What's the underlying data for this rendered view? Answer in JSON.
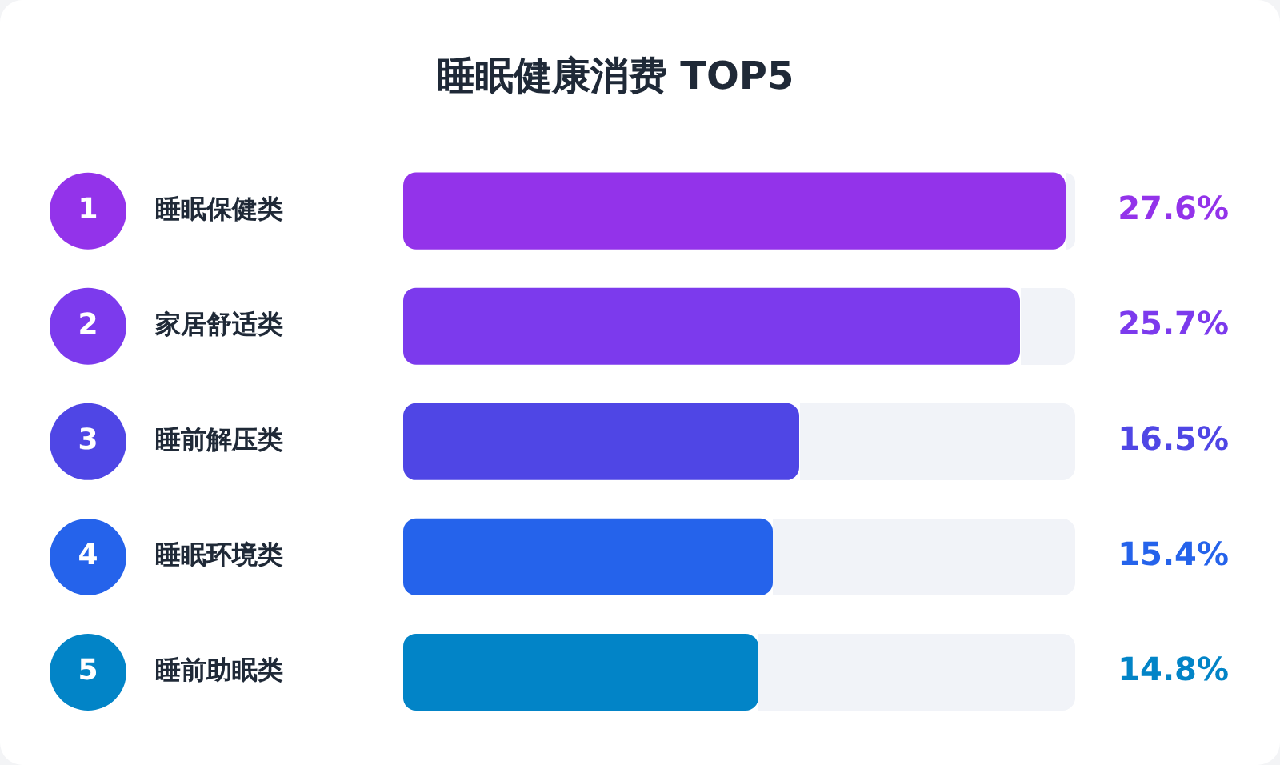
{
  "chart_data": {
    "type": "bar",
    "orientation": "horizontal",
    "title": "睡眠健康消费 TOP5",
    "categories": [
      "睡眠保健类",
      "家居舒适类",
      "睡前解压类",
      "睡眠环境类",
      "睡前助眠类"
    ],
    "values": [
      27.6,
      25.7,
      16.5,
      15.4,
      14.8
    ],
    "colors": [
      "#9333ea",
      "#7c3aed",
      "#4f46e5",
      "#2563eb",
      "#0284c7"
    ],
    "value_labels": [
      "27.6%",
      "25.7%",
      "16.5%",
      "15.4%",
      "14.8%"
    ],
    "xlim": [
      0,
      28
    ],
    "tick_labels": "y",
    "grid": false,
    "legend": false,
    "annotations": [
      "1",
      "2",
      "3",
      "4",
      "5"
    ]
  }
}
